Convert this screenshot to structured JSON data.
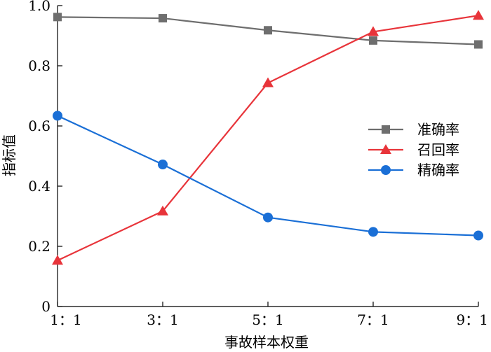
{
  "chart_data": {
    "type": "line",
    "categories": [
      "1：1",
      "3：1",
      "5：1",
      "7：1",
      "9：1"
    ],
    "xlabel": "事故样本权重",
    "ylabel": "指标值",
    "ylim": [
      0,
      1.0
    ],
    "yticks": [
      "0",
      "0.2",
      "0.4",
      "0.6",
      "0.8",
      "1.0"
    ],
    "grid": false,
    "legend_position": "right",
    "series": [
      {
        "name": "准确率",
        "color": "#6e6e6e",
        "marker": "square",
        "values": [
          0.962,
          0.958,
          0.918,
          0.884,
          0.871
        ]
      },
      {
        "name": "召回率",
        "color": "#e8343a",
        "marker": "triangle",
        "values": [
          0.153,
          0.317,
          0.743,
          0.913,
          0.967
        ]
      },
      {
        "name": "精确率",
        "color": "#1a6fd6",
        "marker": "circle",
        "values": [
          0.634,
          0.472,
          0.296,
          0.248,
          0.236
        ]
      }
    ]
  }
}
